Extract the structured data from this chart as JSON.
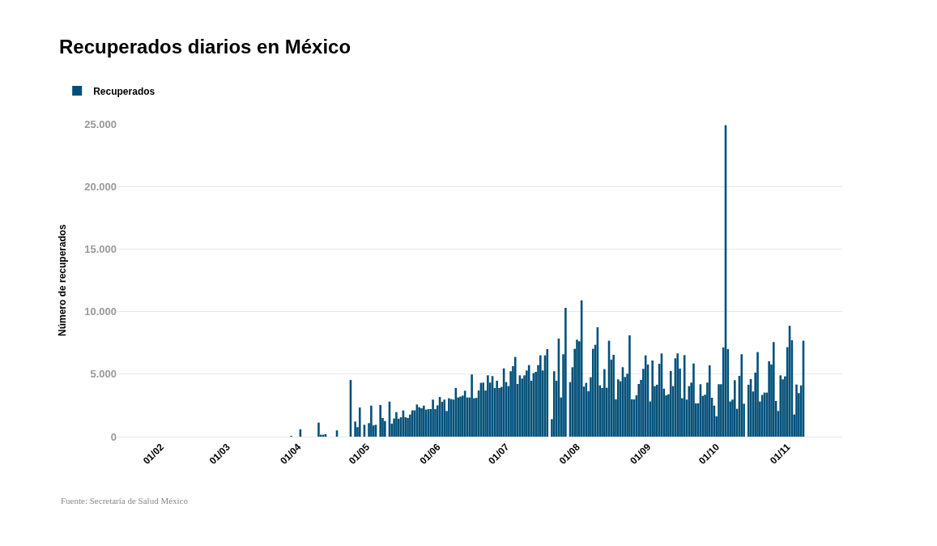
{
  "chart_data": {
    "type": "bar",
    "title": "Recuperados diarios en México",
    "ylabel": "Número de recuperados",
    "annotations": [
      "Fuente: Secretaría de Salud México"
    ],
    "x": [
      "--03-29",
      "--03-30",
      "--03-31",
      "--04-01",
      "--04-02",
      "--04-03",
      "--04-04",
      "--04-05",
      "--04-06",
      "--04-07",
      "--04-08",
      "--04-09",
      "--04-10",
      "--04-11",
      "--04-12",
      "--04-13",
      "--04-14",
      "--04-15",
      "--04-16",
      "--04-17",
      "--04-18",
      "--04-19",
      "--04-20",
      "--04-21",
      "--04-22",
      "--04-23",
      "--04-24",
      "--04-25",
      "--04-26",
      "--04-27",
      "--04-28",
      "--04-29",
      "--04-30",
      "--05-01",
      "--05-02",
      "--05-03",
      "--05-04",
      "--05-05",
      "--05-06",
      "--05-07",
      "--05-08",
      "--05-09",
      "--05-10",
      "--05-11",
      "--05-12",
      "--05-13",
      "--05-14",
      "--05-15",
      "--05-16",
      "--05-17",
      "--05-18",
      "--05-19",
      "--05-20",
      "--05-21",
      "--05-22",
      "--05-23",
      "--05-24",
      "--05-25",
      "--05-26",
      "--05-27",
      "--05-28",
      "--05-29",
      "--05-30",
      "--05-31",
      "--06-01",
      "--06-02",
      "--06-03",
      "--06-04",
      "--06-05",
      "--06-06",
      "--06-07",
      "--06-08",
      "--06-09",
      "--06-10",
      "--06-11",
      "--06-12",
      "--06-13",
      "--06-14",
      "--06-15",
      "--06-16",
      "--06-17",
      "--06-18",
      "--06-19",
      "--06-20",
      "--06-21",
      "--06-22",
      "--06-23",
      "--06-24",
      "--06-25",
      "--06-26",
      "--06-27",
      "--06-28",
      "--06-29",
      "--06-30",
      "--07-01",
      "--07-02",
      "--07-03",
      "--07-04",
      "--07-05",
      "--07-06",
      "--07-07",
      "--07-08",
      "--07-09",
      "--07-10",
      "--07-11",
      "--07-12",
      "--07-13",
      "--07-14",
      "--07-15",
      "--07-16",
      "--07-17",
      "--07-18",
      "--07-19",
      "--07-20",
      "--07-21",
      "--07-22",
      "--07-23",
      "--07-24",
      "--07-25",
      "--07-26",
      "--07-27",
      "--07-28",
      "--07-29",
      "--07-30",
      "--07-31",
      "--08-01",
      "--08-02",
      "--08-03",
      "--08-04",
      "--08-05",
      "--08-06",
      "--08-07",
      "--08-08",
      "--08-09",
      "--08-10",
      "--08-11",
      "--08-12",
      "--08-13",
      "--08-14",
      "--08-15",
      "--08-16",
      "--08-17",
      "--08-18",
      "--08-19",
      "--08-20",
      "--08-21",
      "--08-22",
      "--08-23",
      "--08-24",
      "--08-25",
      "--08-26",
      "--08-27",
      "--08-28",
      "--08-29",
      "--08-30",
      "--08-31",
      "--09-01",
      "--09-02",
      "--09-03",
      "--09-04",
      "--09-05",
      "--09-06",
      "--09-07",
      "--09-08",
      "--09-09",
      "--09-10",
      "--09-11",
      "--09-12",
      "--09-13",
      "--09-14",
      "--09-15",
      "--09-16",
      "--09-17",
      "--09-18",
      "--09-19",
      "--09-20",
      "--09-21",
      "--09-22",
      "--09-23",
      "--09-24",
      "--09-25",
      "--09-26",
      "--09-27",
      "--09-28",
      "--09-29",
      "--09-30",
      "--10-01",
      "--10-02",
      "--10-03",
      "--10-04",
      "--10-05",
      "--10-06",
      "--10-07",
      "--10-08",
      "--10-09",
      "--10-10",
      "--10-11",
      "--10-12",
      "--10-13",
      "--10-14",
      "--10-15",
      "--10-16",
      "--10-17",
      "--10-18",
      "--10-19",
      "--10-20",
      "--10-21",
      "--10-22",
      "--10-23",
      "--10-24",
      "--10-25",
      "--10-26",
      "--10-27",
      "--10-28",
      "--10-29",
      "--10-30",
      "--10-31",
      "--11-01",
      "--11-02",
      "--11-03",
      "--11-04",
      "--11-05",
      "--11-06",
      "--11-07",
      "--11-08"
    ],
    "series": [
      {
        "name": "Recuperados",
        "color": "#01507a",
        "values": [
          60,
          0,
          0,
          0,
          580,
          0,
          0,
          0,
          0,
          0,
          0,
          0,
          1120,
          150,
          150,
          200,
          0,
          0,
          0,
          0,
          500,
          0,
          0,
          0,
          0,
          0,
          4530,
          0,
          1210,
          760,
          2330,
          0,
          950,
          0,
          1080,
          2480,
          900,
          950,
          0,
          2530,
          1490,
          1250,
          0,
          2800,
          1040,
          1450,
          1960,
          1430,
          1550,
          2090,
          1550,
          1500,
          1770,
          2100,
          2100,
          2570,
          2350,
          2270,
          2480,
          2160,
          2200,
          2200,
          2960,
          2200,
          2500,
          3170,
          2790,
          2960,
          2050,
          3070,
          3000,
          2960,
          3890,
          3130,
          3200,
          3280,
          3670,
          3130,
          3130,
          4970,
          3070,
          3100,
          3690,
          4300,
          4320,
          3690,
          4900,
          4320,
          4840,
          3890,
          4470,
          3890,
          3970,
          5460,
          4360,
          4040,
          5230,
          5640,
          6370,
          4210,
          4900,
          4640,
          4900,
          5290,
          5720,
          4470,
          5080,
          5180,
          5720,
          6500,
          5290,
          6500,
          7000,
          0,
          1400,
          5230,
          4470,
          7840,
          3130,
          6590,
          10300,
          0,
          4360,
          5550,
          7020,
          7750,
          7620,
          10900,
          4000,
          4300,
          3630,
          4750,
          7020,
          7340,
          8750,
          4100,
          3890,
          5400,
          3910,
          7670,
          6160,
          6540,
          2980,
          4580,
          4430,
          5550,
          4770,
          5030,
          8100,
          2980,
          2980,
          3300,
          4210,
          4540,
          5420,
          6500,
          5770,
          2810,
          6090,
          4040,
          4150,
          5830,
          6650,
          3840,
          3300,
          3390,
          5250,
          4040,
          6260,
          6650,
          5440,
          3070,
          6520,
          2960,
          4040,
          4320,
          5850,
          2660,
          2660,
          4190,
          3260,
          3350,
          4320,
          5700,
          3110,
          2480,
          1620,
          4190,
          4190,
          7130,
          24900,
          7000,
          2810,
          2960,
          4510,
          2220,
          4860,
          6590,
          2630,
          0,
          4150,
          4600,
          3610,
          5120,
          6760,
          2810,
          3330,
          3520,
          3520,
          6030,
          5770,
          7560,
          2850,
          2050,
          4900,
          4580,
          4820,
          7150,
          8860,
          7710,
          1770,
          4170,
          3480,
          4100,
          7670
        ]
      }
    ],
    "xlim": [
      "--01-13",
      "--11-25"
    ],
    "xticks": [
      {
        "value": "--02-01",
        "label": "01/02"
      },
      {
        "value": "--03-01",
        "label": "01/03"
      },
      {
        "value": "--04-01",
        "label": "01/04"
      },
      {
        "value": "--05-01",
        "label": "01/05"
      },
      {
        "value": "--06-01",
        "label": "01/06"
      },
      {
        "value": "--07-01",
        "label": "01/07"
      },
      {
        "value": "--08-01",
        "label": "01/08"
      },
      {
        "value": "--09-01",
        "label": "01/09"
      },
      {
        "value": "--10-01",
        "label": "01/10"
      },
      {
        "value": "--11-01",
        "label": "01/11"
      }
    ],
    "ylim": [
      0,
      25000
    ],
    "yticks": [
      0,
      {
        "value": 5000,
        "label": "5.000"
      },
      {
        "value": 10000,
        "label": "10.000"
      },
      {
        "value": 15000,
        "label": "15.000"
      },
      {
        "value": 20000,
        "label": "20.000"
      },
      {
        "value": 25000,
        "label": "25.000"
      }
    ],
    "grid": "y",
    "legend": "top left"
  }
}
